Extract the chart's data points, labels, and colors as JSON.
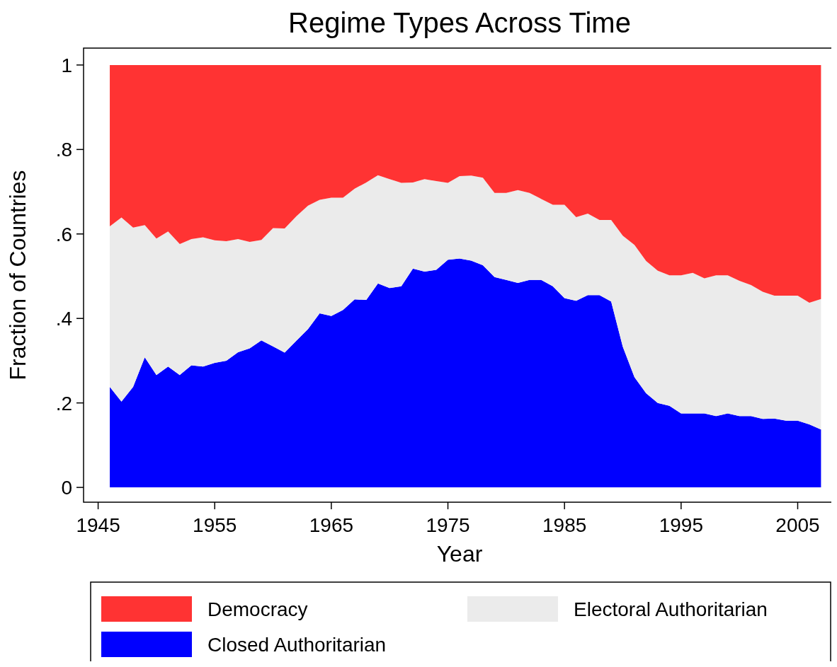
{
  "chart_data": {
    "type": "area",
    "stacked": true,
    "title": "Regime Types Across Time",
    "xlabel": "Year",
    "ylabel": "Fraction of Countries",
    "x": [
      1946,
      1947,
      1948,
      1949,
      1950,
      1951,
      1952,
      1953,
      1954,
      1955,
      1956,
      1957,
      1958,
      1959,
      1960,
      1961,
      1962,
      1963,
      1964,
      1965,
      1966,
      1967,
      1968,
      1969,
      1970,
      1971,
      1972,
      1973,
      1974,
      1975,
      1976,
      1977,
      1978,
      1979,
      1980,
      1981,
      1982,
      1983,
      1984,
      1985,
      1986,
      1987,
      1988,
      1989,
      1990,
      1991,
      1992,
      1993,
      1994,
      1995,
      1996,
      1997,
      1998,
      1999,
      2000,
      2001,
      2002,
      2003,
      2004,
      2005,
      2006,
      2007
    ],
    "series": [
      {
        "name": "Closed Authoritarian",
        "color": "#0000ff",
        "values": [
          0.238,
          0.203,
          0.238,
          0.308,
          0.266,
          0.286,
          0.266,
          0.289,
          0.286,
          0.295,
          0.3,
          0.32,
          0.329,
          0.348,
          0.334,
          0.319,
          0.347,
          0.375,
          0.412,
          0.406,
          0.42,
          0.445,
          0.444,
          0.483,
          0.472,
          0.476,
          0.518,
          0.511,
          0.515,
          0.539,
          0.542,
          0.537,
          0.526,
          0.498,
          0.491,
          0.484,
          0.491,
          0.491,
          0.476,
          0.448,
          0.442,
          0.455,
          0.455,
          0.44,
          0.333,
          0.261,
          0.223,
          0.2,
          0.193,
          0.175,
          0.175,
          0.175,
          0.169,
          0.175,
          0.169,
          0.169,
          0.162,
          0.163,
          0.158,
          0.158,
          0.149,
          0.137
        ]
      },
      {
        "name": "Electoral Authoritarian",
        "color": "#ebebeb",
        "values": [
          0.38,
          0.436,
          0.377,
          0.313,
          0.323,
          0.32,
          0.31,
          0.299,
          0.306,
          0.29,
          0.283,
          0.268,
          0.252,
          0.238,
          0.28,
          0.294,
          0.295,
          0.292,
          0.269,
          0.28,
          0.266,
          0.262,
          0.278,
          0.256,
          0.258,
          0.245,
          0.204,
          0.219,
          0.21,
          0.182,
          0.195,
          0.201,
          0.207,
          0.199,
          0.206,
          0.22,
          0.206,
          0.192,
          0.193,
          0.221,
          0.198,
          0.193,
          0.178,
          0.193,
          0.263,
          0.313,
          0.313,
          0.313,
          0.309,
          0.327,
          0.333,
          0.32,
          0.333,
          0.327,
          0.32,
          0.31,
          0.301,
          0.291,
          0.296,
          0.296,
          0.288,
          0.309
        ]
      },
      {
        "name": "Democracy",
        "color": "#ff3333",
        "values": [
          0.382,
          0.361,
          0.385,
          0.379,
          0.411,
          0.394,
          0.424,
          0.412,
          0.408,
          0.415,
          0.417,
          0.412,
          0.419,
          0.414,
          0.386,
          0.387,
          0.358,
          0.333,
          0.319,
          0.314,
          0.314,
          0.293,
          0.278,
          0.261,
          0.27,
          0.279,
          0.278,
          0.27,
          0.275,
          0.279,
          0.263,
          0.262,
          0.267,
          0.303,
          0.303,
          0.296,
          0.303,
          0.317,
          0.331,
          0.331,
          0.36,
          0.352,
          0.367,
          0.367,
          0.404,
          0.426,
          0.464,
          0.487,
          0.498,
          0.498,
          0.492,
          0.505,
          0.498,
          0.498,
          0.511,
          0.521,
          0.537,
          0.546,
          0.546,
          0.546,
          0.563,
          0.554
        ]
      }
    ],
    "xlim": [
      1943.75,
      2008.25
    ],
    "xticks": [
      1945,
      1955,
      1965,
      1975,
      1985,
      1995,
      2005
    ],
    "ylim": [
      -0.035,
      1.04
    ],
    "yticks": [
      0,
      {
        "value": 0.2,
        "label": ".2"
      },
      {
        "value": 0.4,
        "label": ".4"
      },
      {
        "value": 0.6,
        "label": ".6"
      },
      {
        "value": 0.8,
        "label": ".8"
      },
      1
    ],
    "grid": false,
    "legend": "bottom"
  }
}
